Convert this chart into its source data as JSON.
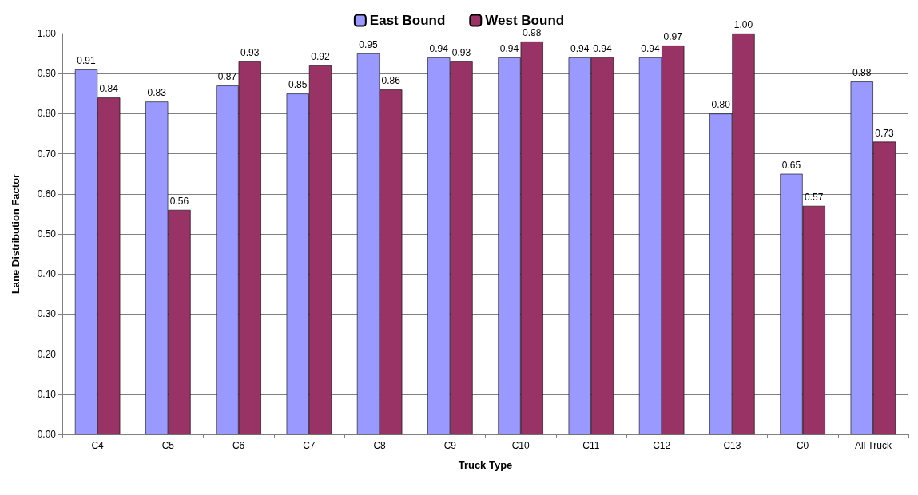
{
  "chart_data": {
    "type": "bar",
    "xlabel": "Truck Type",
    "ylabel": "Lane Distribution Factor",
    "categories": [
      "C4",
      "C5",
      "C6",
      "C7",
      "C8",
      "C9",
      "C10",
      "C11",
      "C12",
      "C13",
      "C0",
      "All Truck"
    ],
    "series": [
      {
        "name": "East Bound",
        "color": "#9999ff",
        "values": [
          0.91,
          0.83,
          0.87,
          0.85,
          0.95,
          0.94,
          0.94,
          0.94,
          0.94,
          0.8,
          0.65,
          0.88
        ],
        "value_labels": [
          "0.91",
          "0.83",
          "0.87",
          "0.85",
          "0.95",
          "0.94",
          "0.94",
          "0.94",
          "0.94",
          "0.80",
          "0.65",
          "0.88"
        ]
      },
      {
        "name": "West Bound",
        "color": "#993366",
        "values": [
          0.84,
          0.56,
          0.93,
          0.92,
          0.86,
          0.93,
          0.98,
          0.94,
          0.97,
          1.0,
          0.57,
          0.73
        ],
        "value_labels": [
          "0.84",
          "0.56",
          "0.93",
          "0.92",
          "0.86",
          "0.93",
          "0.98",
          "0.94",
          "0.97",
          "1.00",
          "0.57",
          "0.73"
        ]
      }
    ],
    "ylim": [
      0,
      1
    ],
    "yticks": [
      {
        "value": 0,
        "label": "0.00"
      },
      {
        "value": 0.1,
        "label": "0.10"
      },
      {
        "value": 0.2,
        "label": "0.20"
      },
      {
        "value": 0.3,
        "label": "0.30"
      },
      {
        "value": 0.4,
        "label": "0.40"
      },
      {
        "value": 0.5,
        "label": "0.50"
      },
      {
        "value": 0.6,
        "label": "0.60"
      },
      {
        "value": 0.7,
        "label": "0.70"
      },
      {
        "value": 0.8,
        "label": "0.80"
      },
      {
        "value": 0.9,
        "label": "0.90"
      },
      {
        "value": 1,
        "label": "1.00"
      }
    ],
    "grid": "y",
    "legend": "top"
  }
}
